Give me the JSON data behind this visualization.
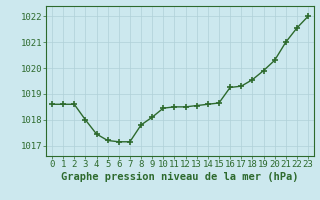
{
  "x": [
    0,
    1,
    2,
    3,
    4,
    5,
    6,
    7,
    8,
    9,
    10,
    11,
    12,
    13,
    14,
    15,
    16,
    17,
    18,
    19,
    20,
    21,
    22,
    23
  ],
  "y": [
    1018.6,
    1018.6,
    1018.6,
    1018.0,
    1017.45,
    1017.2,
    1017.15,
    1017.15,
    1017.8,
    1018.1,
    1018.45,
    1018.5,
    1018.5,
    1018.55,
    1018.6,
    1018.65,
    1019.25,
    1019.3,
    1019.55,
    1019.9,
    1020.3,
    1021.0,
    1021.55,
    1022.0
  ],
  "line_color": "#2d6a2d",
  "marker_color": "#2d6a2d",
  "bg_color": "#cce8ee",
  "grid_color": "#b0d0d8",
  "title": "Graphe pression niveau de la mer (hPa)",
  "ylabel_ticks": [
    1017,
    1018,
    1019,
    1020,
    1021,
    1022
  ],
  "xlabel_ticks": [
    0,
    1,
    2,
    3,
    4,
    5,
    6,
    7,
    8,
    9,
    10,
    11,
    12,
    13,
    14,
    15,
    16,
    17,
    18,
    19,
    20,
    21,
    22,
    23
  ],
  "ylim": [
    1016.6,
    1022.4
  ],
  "xlim": [
    -0.5,
    23.5
  ],
  "title_fontsize": 7.5,
  "tick_fontsize": 6.5,
  "line_width": 1.0,
  "marker_size": 4
}
